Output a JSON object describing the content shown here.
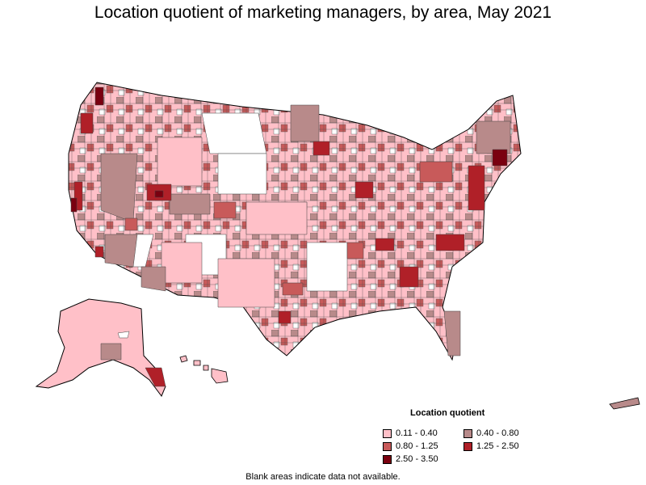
{
  "title": "Location quotient of marketing managers, by area, May 2021",
  "legend": {
    "title": "Location quotient",
    "items": [
      {
        "label": "0.11 - 0.40",
        "color": "#ffc0c8"
      },
      {
        "label": "0.40 - 0.80",
        "color": "#b88a8a"
      },
      {
        "label": "0.80 - 1.25",
        "color": "#c85a5a"
      },
      {
        "label": "1.25 - 2.50",
        "color": "#b02028"
      },
      {
        "label": "2.50 - 3.50",
        "color": "#7a0010"
      }
    ]
  },
  "footnote": "Blank areas indicate data not available."
}
